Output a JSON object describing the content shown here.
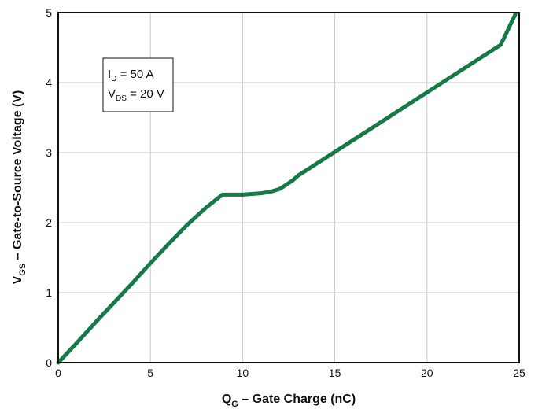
{
  "chart_data": {
    "type": "line",
    "title": "",
    "xlabel": {
      "main": "Q",
      "sub": "G",
      "rest": " – Gate Charge (nC)"
    },
    "ylabel": {
      "main": "V",
      "sub": "GS",
      "rest": " – Gate-to-Source Voltage (V)"
    },
    "xlim": [
      0,
      25
    ],
    "ylim": [
      0,
      5
    ],
    "xticks": [
      "0",
      "5",
      "10",
      "15",
      "20",
      "25"
    ],
    "yticks": [
      "0",
      "1",
      "2",
      "3",
      "4",
      "5"
    ],
    "grid": true,
    "series": [
      {
        "color": "#157a45",
        "x": [
          0,
          1,
          2,
          3,
          4,
          5,
          6,
          7,
          8,
          8.9,
          9.5,
          10,
          10.5,
          11,
          11.5,
          12,
          12.3,
          12.7,
          13,
          14,
          15,
          16,
          17,
          18,
          19,
          20,
          21,
          22,
          23,
          24,
          24.8
        ],
        "y": [
          0,
          0.28,
          0.57,
          0.85,
          1.13,
          1.42,
          1.7,
          1.97,
          2.21,
          2.4,
          2.4,
          2.4,
          2.41,
          2.42,
          2.44,
          2.48,
          2.53,
          2.6,
          2.67,
          2.84,
          3.01,
          3.18,
          3.35,
          3.52,
          3.69,
          3.86,
          4.03,
          4.2,
          4.37,
          4.54,
          4.98
        ]
      }
    ],
    "annotation": {
      "lines": [
        {
          "main": "I",
          "sub": "D",
          "rest": " = 50 A"
        },
        {
          "main": "V",
          "sub": "DS",
          "rest": " = 20 V"
        }
      ]
    }
  }
}
